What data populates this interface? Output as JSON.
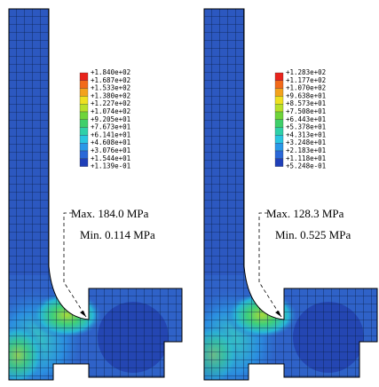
{
  "panels": [
    {
      "legend": [
        "+1.840e+02",
        "+1.687e+02",
        "+1.533e+02",
        "+1.380e+02",
        "+1.227e+02",
        "+1.074e+02",
        "+9.205e+01",
        "+7.673e+01",
        "+6.141e+01",
        "+4.608e+01",
        "+3.076e+01",
        "+1.544e+01",
        "+1.139e-01"
      ],
      "annotation": {
        "max": "Max. 184.0 MPa",
        "min": "Min. 0.114 MPa"
      }
    },
    {
      "legend": [
        "+1.283e+02",
        "+1.177e+02",
        "+1.070e+02",
        "+9.638e+01",
        "+8.573e+01",
        "+7.508e+01",
        "+6.443e+01",
        "+5.378e+01",
        "+4.313e+01",
        "+3.248e+01",
        "+2.183e+01",
        "+1.118e+01",
        "+5.248e-01"
      ],
      "annotation": {
        "max": "Max. 128.3 MPa",
        "min": "Min. 0.525 MPa"
      }
    }
  ]
}
